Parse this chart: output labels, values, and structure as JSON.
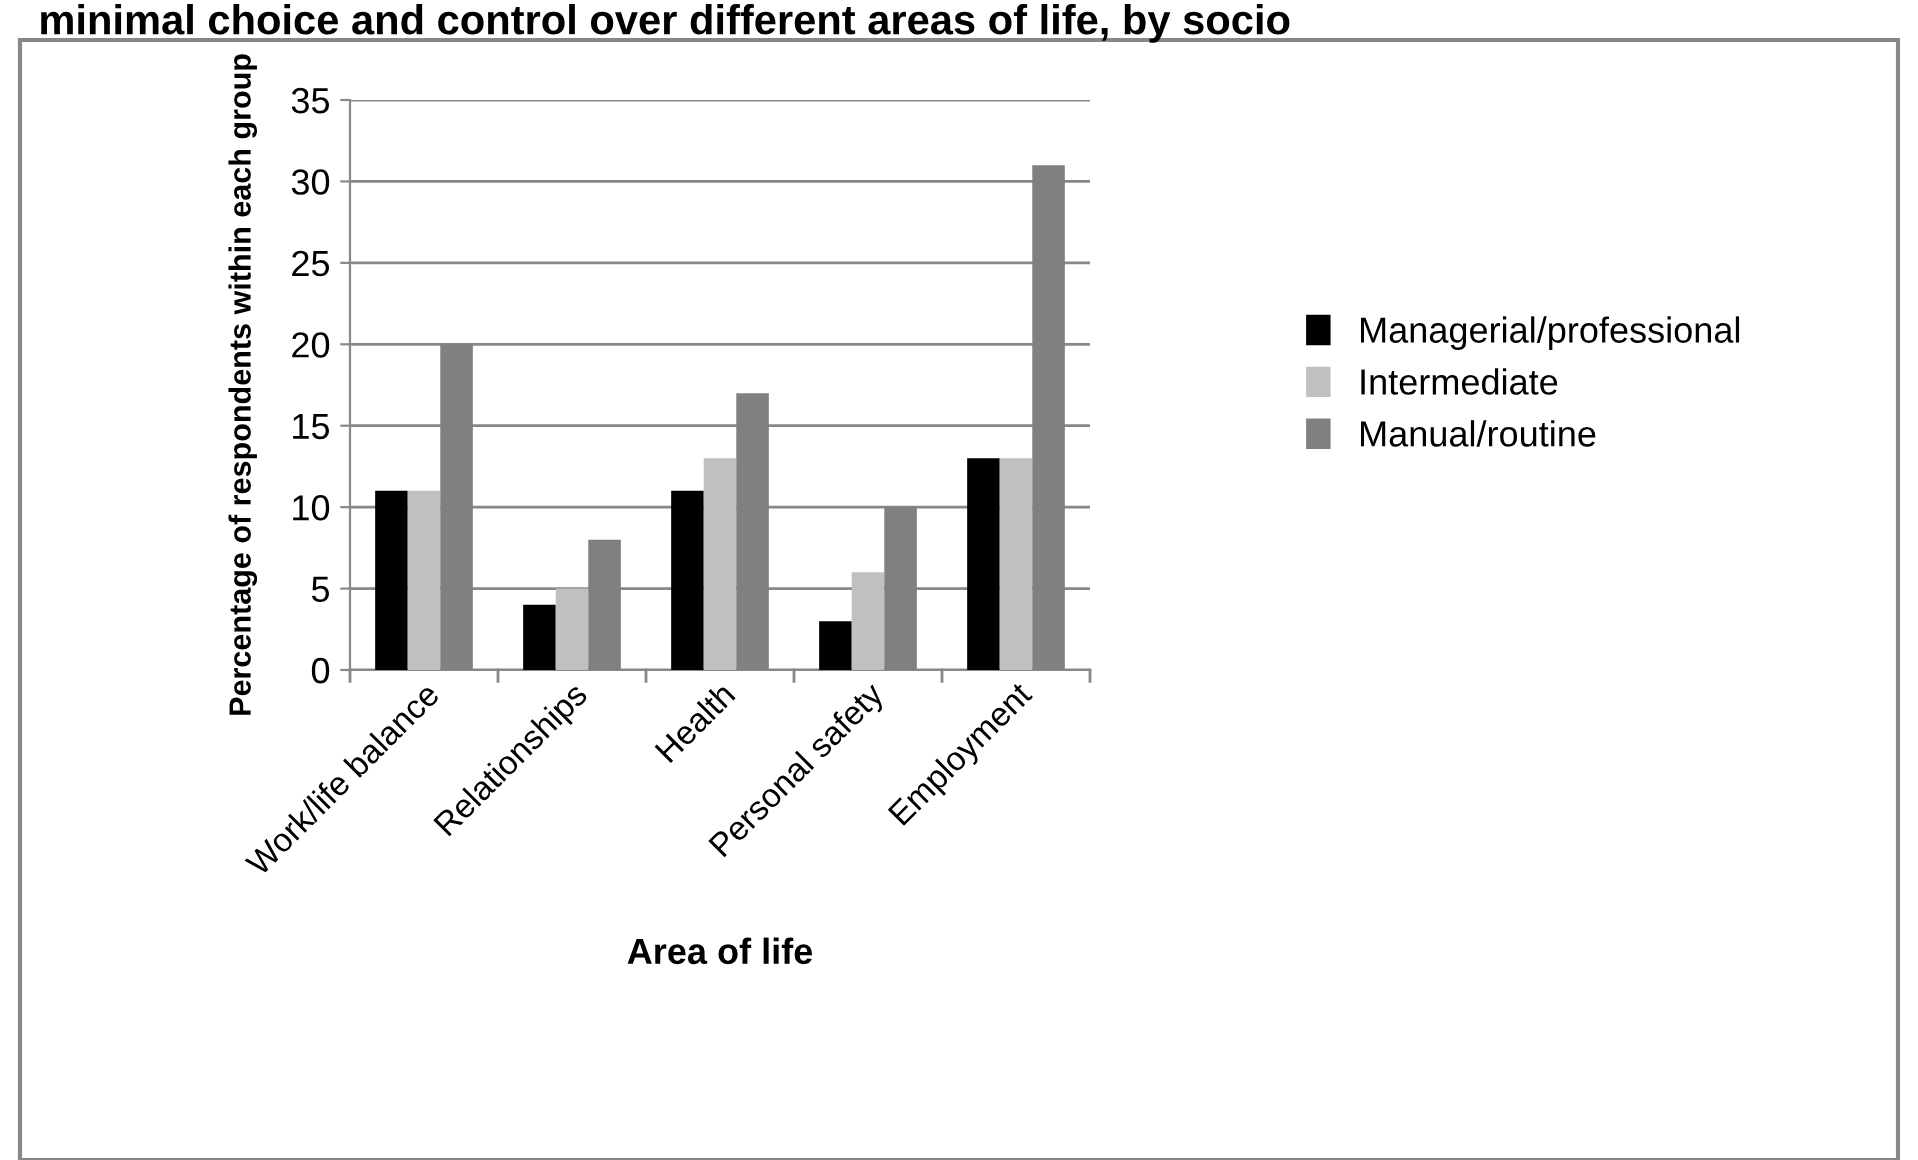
{
  "chart_data": {
    "type": "bar",
    "title": "minimal choice and control over different areas of life, by socio",
    "xlabel": "Area of life",
    "ylabel": "Percentage of respondents within each group",
    "categories": [
      "Work/life balance",
      "Relationships",
      "Health",
      "Personal safety",
      "Employment"
    ],
    "series": [
      {
        "name": "Managerial/professional",
        "color": "#000000",
        "values": [
          11,
          4,
          11,
          3,
          13
        ]
      },
      {
        "name": "Intermediate",
        "color": "#c0c0c0",
        "values": [
          11,
          5,
          13,
          6,
          13
        ]
      },
      {
        "name": "Manual/routine",
        "color": "#808080",
        "values": [
          20,
          8,
          17,
          10,
          31
        ]
      }
    ],
    "ylim": [
      0,
      35
    ],
    "yticks": [
      0,
      5,
      10,
      15,
      20,
      25,
      30,
      35
    ],
    "grid": "y",
    "legend": "right"
  }
}
